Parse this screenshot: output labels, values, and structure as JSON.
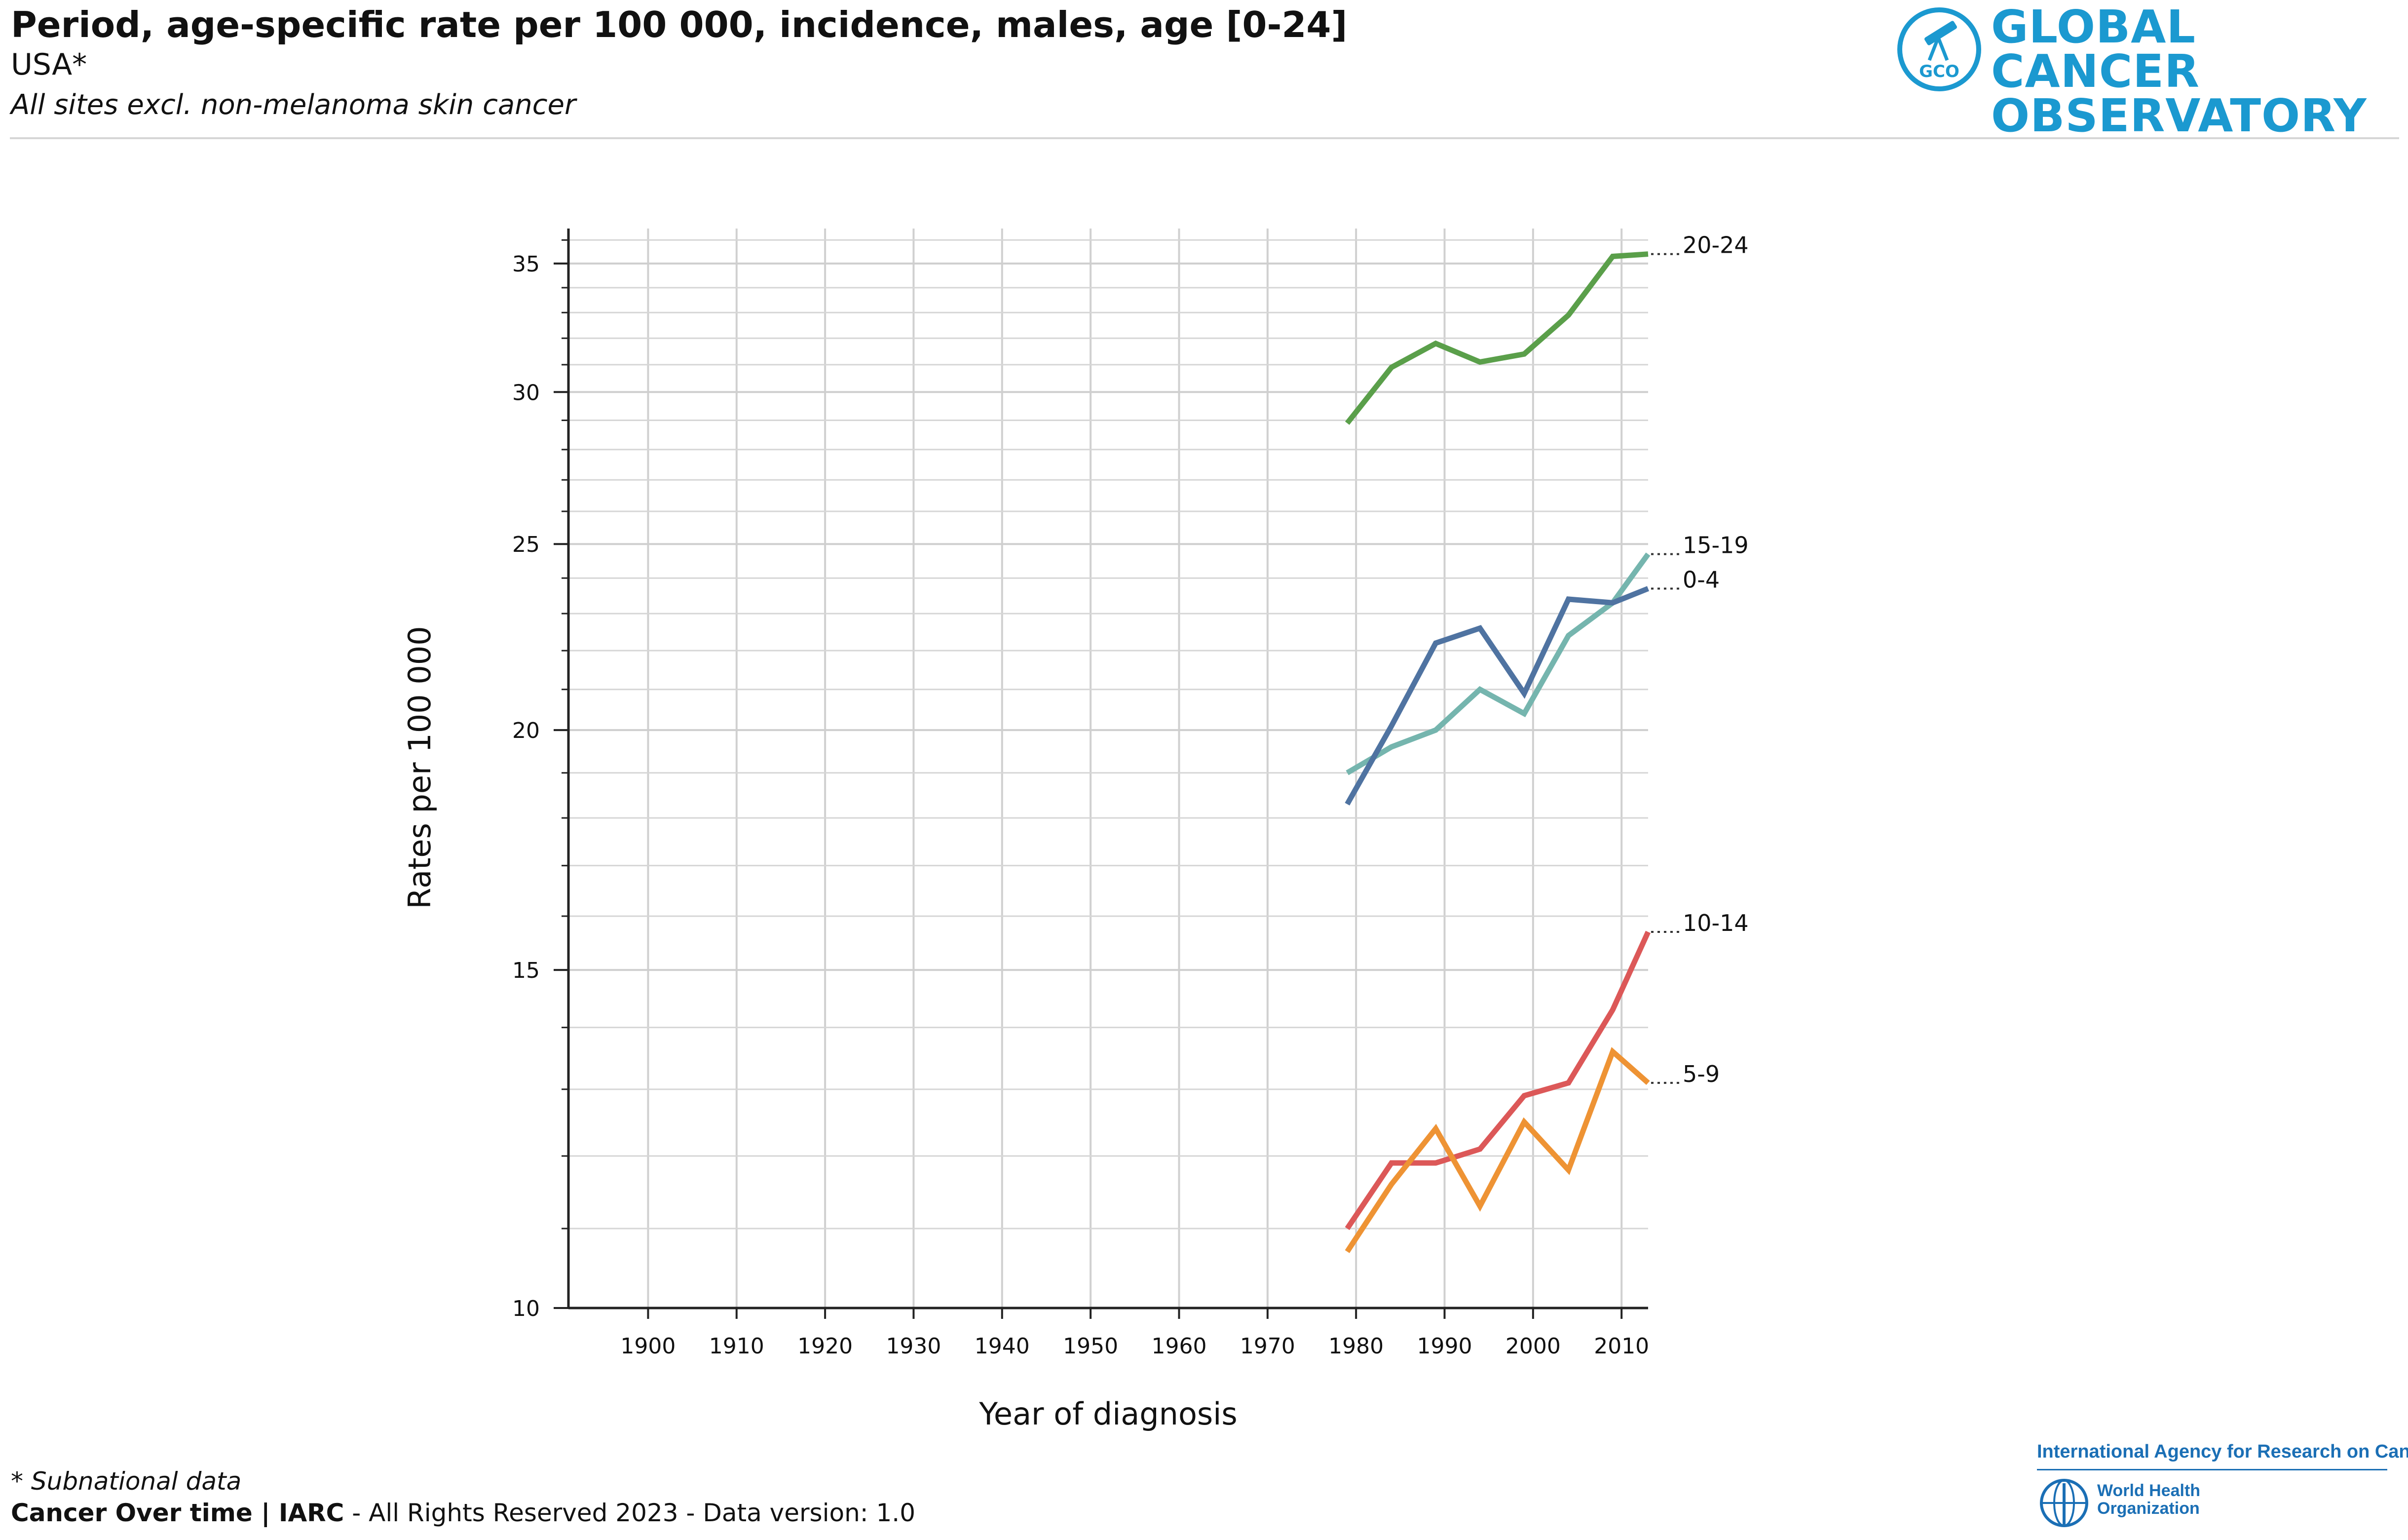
{
  "header": {
    "title": "Period, age-specific rate per 100 000, incidence, males, age [0-24]",
    "population": "USA*",
    "cancer_site": "All sites excl. non-melanoma skin cancer"
  },
  "logo": {
    "line1": "GLOBAL CANCER",
    "line2": "OBSERVATORY",
    "badge": "GCO",
    "color": "#1b99d0"
  },
  "footnote": "* Subnational data",
  "footer": {
    "brand": "Cancer Over time | IARC",
    "rest": " - All Rights Reserved 2023 - Data version: 1.0"
  },
  "partners": {
    "iarc": "International Agency for Research on Cancer",
    "who_line1": "World Health",
    "who_line2": "Organization",
    "color": "#1b6fb5"
  },
  "chart_data": {
    "type": "line",
    "scale": "log",
    "title": "Period, age-specific rate per 100 000, incidence, males, age [0-24]",
    "xlabel": "Year of diagnosis",
    "ylabel": "Rates per 100 000",
    "xlim": [
      1891,
      2013
    ],
    "ylim": [
      10,
      36.5
    ],
    "x_ticks": [
      1900,
      1910,
      1920,
      1930,
      1940,
      1950,
      1960,
      1970,
      1980,
      1990,
      2000,
      2010
    ],
    "y_ticks_labeled": [
      10,
      15,
      20,
      25,
      30,
      35
    ],
    "y_minor_grid": [
      11,
      12,
      13,
      14,
      16,
      17,
      18,
      19,
      21,
      22,
      23,
      24,
      26,
      27,
      28,
      29,
      31,
      32,
      33,
      34,
      36
    ],
    "grid": true,
    "x": [
      1979,
      1984,
      1989,
      1994,
      1999,
      2004,
      2009,
      2013
    ],
    "series": [
      {
        "name": "20-24",
        "color": "#5a9f4a",
        "values": [
          28.9,
          30.9,
          31.8,
          31.1,
          31.4,
          32.9,
          35.3,
          35.4
        ]
      },
      {
        "name": "15-19",
        "color": "#75b5ae",
        "values": [
          19.0,
          19.6,
          20.0,
          21.0,
          20.4,
          22.4,
          23.3,
          24.7
        ]
      },
      {
        "name": "0-4",
        "color": "#4f73a1",
        "values": [
          18.3,
          20.1,
          22.2,
          22.6,
          20.9,
          23.4,
          23.3,
          23.7
        ]
      },
      {
        "name": "10-14",
        "color": "#dc5858",
        "values": [
          11.0,
          11.9,
          11.9,
          12.1,
          12.9,
          13.1,
          14.3,
          15.7
        ]
      },
      {
        "name": "5-9",
        "color": "#ee9334",
        "values": [
          10.7,
          11.6,
          12.4,
          11.3,
          12.5,
          11.8,
          13.6,
          13.1
        ]
      }
    ]
  }
}
